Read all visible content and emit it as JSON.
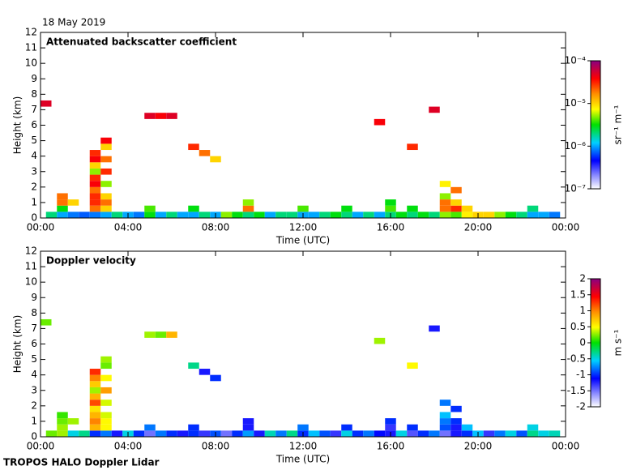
{
  "date": "18 May 2019",
  "footer": "TROPOS HALO Doppler Lidar",
  "chart_data": [
    {
      "type": "heatmap",
      "title": "Attenuated backscatter coefficient",
      "xlabel": "Time (UTC)",
      "ylabel": "Height (km)",
      "xlim": [
        0,
        24
      ],
      "xticks": [
        {
          "value": 0,
          "label": "00:00"
        },
        {
          "value": 4,
          "label": "04:00"
        },
        {
          "value": 8,
          "label": "08:00"
        },
        {
          "value": 12,
          "label": "12:00"
        },
        {
          "value": 16,
          "label": "16:00"
        },
        {
          "value": 20,
          "label": "20:00"
        },
        {
          "value": 24,
          "label": "00:00"
        }
      ],
      "ylim": [
        0,
        12
      ],
      "yticks": [
        0,
        1,
        2,
        3,
        4,
        5,
        6,
        7,
        8,
        9,
        10,
        11,
        12
      ],
      "colorbar_label": "sr⁻¹ m⁻¹",
      "clog": true,
      "clim": [
        1e-07,
        0.0001
      ],
      "cticks": [
        {
          "value": 1e-07,
          "label": "10⁻⁷"
        },
        {
          "value": 1e-06,
          "label": "10⁻⁶"
        },
        {
          "value": 1e-05,
          "label": "10⁻⁵"
        },
        {
          "value": 0.0001,
          "label": "10⁻⁴"
        }
      ],
      "x": [
        0.5,
        1.0,
        1.5,
        2.0,
        2.5,
        3.0,
        3.5,
        4.0,
        4.5,
        5.0,
        5.5,
        6.0,
        6.5,
        7.0,
        7.5,
        8.0,
        8.5,
        9.0,
        9.5,
        10.0,
        10.5,
        11.0,
        11.5,
        12.0,
        12.5,
        13.0,
        13.5,
        14.0,
        14.5,
        15.0,
        15.5,
        16.0,
        16.5,
        17.0,
        17.5,
        18.0,
        18.5,
        19.0,
        19.5,
        20.0,
        20.5,
        21.0,
        21.5,
        22.0,
        22.5,
        23.0,
        23.5,
        1.0,
        2.5,
        3.0,
        5.0,
        7.0,
        9.5,
        12.0,
        14.0,
        16.0,
        17.0,
        18.5,
        19.0,
        19.5,
        22.5,
        1.0,
        1.5,
        2.5,
        3.0,
        9.5,
        16.0,
        18.5,
        19.0,
        1.0,
        2.5,
        3.0,
        18.5,
        2.5,
        2.5,
        2.5,
        2.5,
        2.5,
        2.5,
        2.5,
        3.0,
        3.0,
        3.0,
        3.0,
        3.0,
        7.0,
        7.5,
        8.0,
        5.0,
        5.5,
        6.0,
        0.25,
        15.5,
        17.0,
        18.0,
        18.5,
        19.0
      ],
      "y": [
        0.2,
        0.2,
        0.2,
        0.2,
        0.2,
        0.2,
        0.2,
        0.2,
        0.2,
        0.2,
        0.2,
        0.2,
        0.2,
        0.2,
        0.2,
        0.2,
        0.2,
        0.2,
        0.2,
        0.2,
        0.2,
        0.2,
        0.2,
        0.2,
        0.2,
        0.2,
        0.2,
        0.2,
        0.2,
        0.2,
        0.2,
        0.2,
        0.2,
        0.2,
        0.2,
        0.2,
        0.2,
        0.2,
        0.2,
        0.2,
        0.2,
        0.2,
        0.2,
        0.2,
        0.2,
        0.2,
        0.2,
        0.6,
        0.6,
        0.6,
        0.6,
        0.6,
        0.6,
        0.6,
        0.6,
        0.6,
        0.6,
        0.6,
        0.6,
        0.6,
        0.6,
        1.0,
        1.0,
        1.0,
        1.0,
        1.0,
        1.0,
        1.0,
        1.0,
        1.4,
        1.4,
        1.4,
        1.4,
        1.8,
        2.2,
        2.6,
        3.0,
        3.4,
        3.8,
        4.2,
        2.2,
        3.0,
        3.8,
        4.6,
        5.0,
        4.6,
        4.2,
        3.8,
        6.6,
        6.6,
        6.6,
        7.4,
        6.2,
        4.6,
        7.0,
        2.2,
        1.8
      ],
      "values": [
        2e-06,
        1e-06,
        8e-07,
        7e-07,
        8e-07,
        1e-06,
        2e-06,
        1e-06,
        8e-07,
        3e-06,
        1e-06,
        2e-06,
        1e-06,
        1e-06,
        2e-06,
        1e-06,
        5e-06,
        3e-06,
        2e-06,
        3e-06,
        1e-06,
        2e-06,
        2e-06,
        1e-06,
        1e-06,
        2e-06,
        3e-06,
        2e-06,
        1e-06,
        2e-06,
        1e-06,
        2e-06,
        3e-06,
        2e-06,
        3e-06,
        2e-06,
        5e-06,
        4e-06,
        8e-06,
        1e-05,
        1e-05,
        5e-06,
        3e-06,
        2e-06,
        1e-06,
        1e-06,
        8e-07,
        3e-06,
        2e-05,
        1e-05,
        4e-06,
        3e-06,
        2e-05,
        4e-06,
        3e-06,
        4e-06,
        3e-06,
        2e-05,
        3e-05,
        1e-05,
        2e-06,
        2e-05,
        1e-05,
        3e-05,
        2e-05,
        5e-06,
        3e-06,
        2e-05,
        1e-05,
        2e-05,
        3e-05,
        1e-05,
        5e-06,
        2e-05,
        4e-05,
        3e-05,
        5e-06,
        1e-05,
        4e-05,
        3e-05,
        5e-06,
        3e-05,
        2e-05,
        1e-05,
        4e-05,
        3e-05,
        2e-05,
        1e-05,
        5e-05,
        4e-05,
        5e-05,
        5e-05,
        4e-05,
        3e-05,
        5e-05,
        8e-06,
        2e-05
      ]
    },
    {
      "type": "heatmap",
      "title": "Doppler velocity",
      "xlabel": "Time (UTC)",
      "ylabel": "Height (km)",
      "xlim": [
        0,
        24
      ],
      "xticks": [
        {
          "value": 0,
          "label": "00:00"
        },
        {
          "value": 4,
          "label": "04:00"
        },
        {
          "value": 8,
          "label": "08:00"
        },
        {
          "value": 12,
          "label": "12:00"
        },
        {
          "value": 16,
          "label": "16:00"
        },
        {
          "value": 20,
          "label": "20:00"
        },
        {
          "value": 24,
          "label": "00:00"
        }
      ],
      "ylim": [
        0,
        12
      ],
      "yticks": [
        0,
        1,
        2,
        3,
        4,
        5,
        6,
        7,
        8,
        9,
        10,
        11,
        12
      ],
      "colorbar_label": "m s⁻¹",
      "clog": false,
      "clim": [
        -2,
        2
      ],
      "cticks": [
        -2,
        -1.5,
        -1,
        -0.5,
        0,
        0.5,
        1,
        1.5,
        2
      ],
      "x": [
        0.5,
        1.0,
        1.5,
        2.0,
        2.5,
        3.0,
        3.5,
        4.0,
        4.5,
        5.0,
        5.5,
        6.0,
        6.5,
        7.0,
        7.5,
        8.0,
        8.5,
        9.0,
        9.5,
        10.0,
        10.5,
        11.0,
        11.5,
        12.0,
        12.5,
        13.0,
        13.5,
        14.0,
        14.5,
        15.0,
        15.5,
        16.0,
        16.5,
        17.0,
        17.5,
        18.0,
        18.5,
        19.0,
        19.5,
        20.0,
        20.5,
        21.0,
        21.5,
        22.0,
        22.5,
        23.0,
        23.5,
        1.0,
        2.5,
        3.0,
        5.0,
        7.0,
        9.5,
        12.0,
        14.0,
        16.0,
        17.0,
        18.5,
        19.0,
        19.5,
        22.5,
        1.0,
        1.5,
        2.5,
        3.0,
        9.5,
        16.0,
        18.5,
        19.0,
        1.0,
        2.5,
        3.0,
        18.5,
        2.5,
        2.5,
        2.5,
        2.5,
        2.5,
        2.5,
        2.5,
        3.0,
        3.0,
        3.0,
        3.0,
        3.0,
        7.0,
        7.5,
        8.0,
        5.0,
        5.5,
        6.0,
        0.25,
        15.5,
        17.0,
        18.0,
        18.5,
        19.0
      ],
      "y": [
        0.2,
        0.2,
        0.2,
        0.2,
        0.2,
        0.2,
        0.2,
        0.2,
        0.2,
        0.2,
        0.2,
        0.2,
        0.2,
        0.2,
        0.2,
        0.2,
        0.2,
        0.2,
        0.2,
        0.2,
        0.2,
        0.2,
        0.2,
        0.2,
        0.2,
        0.2,
        0.2,
        0.2,
        0.2,
        0.2,
        0.2,
        0.2,
        0.2,
        0.2,
        0.2,
        0.2,
        0.2,
        0.2,
        0.2,
        0.2,
        0.2,
        0.2,
        0.2,
        0.2,
        0.2,
        0.2,
        0.2,
        0.6,
        0.6,
        0.6,
        0.6,
        0.6,
        0.6,
        0.6,
        0.6,
        0.6,
        0.6,
        0.6,
        0.6,
        0.6,
        0.6,
        1.0,
        1.0,
        1.0,
        1.0,
        1.0,
        1.0,
        1.0,
        1.0,
        1.4,
        1.4,
        1.4,
        1.4,
        1.8,
        2.2,
        2.6,
        3.0,
        3.4,
        3.8,
        4.2,
        2.2,
        3.0,
        3.8,
        4.6,
        5.0,
        4.6,
        4.2,
        3.8,
        6.6,
        6.6,
        6.6,
        7.4,
        6.2,
        4.6,
        7.0,
        2.2,
        1.8
      ],
      "values": [
        0.2,
        0.3,
        -0.5,
        -0.3,
        -1.0,
        -0.8,
        -1.2,
        -0.5,
        -1.0,
        -1.5,
        -0.8,
        -1.0,
        -1.2,
        -1.0,
        -1.3,
        -0.9,
        -1.5,
        -1.0,
        -0.7,
        -1.2,
        -0.4,
        -0.8,
        -0.3,
        -1.0,
        -0.6,
        -0.9,
        -1.3,
        -0.5,
        -1.0,
        -0.8,
        -1.1,
        -1.2,
        -0.5,
        -1.4,
        -1.0,
        -0.8,
        -1.5,
        -1.2,
        -1.0,
        -0.6,
        -1.3,
        -0.8,
        -0.5,
        -0.9,
        -0.3,
        -0.5,
        -0.4,
        0.3,
        0.8,
        0.5,
        -0.8,
        -1.0,
        -1.2,
        -0.8,
        -1.0,
        -1.3,
        -1.0,
        -0.9,
        -1.2,
        -0.6,
        -0.5,
        0.2,
        0.3,
        1.0,
        0.5,
        -1.2,
        -1.0,
        -0.8,
        -1.0,
        0.1,
        0.8,
        0.4,
        -0.6,
        0.6,
        1.2,
        0.8,
        0.3,
        0.7,
        1.0,
        1.3,
        0.4,
        0.9,
        0.5,
        0.2,
        0.3,
        -0.3,
        -1.2,
        -1.0,
        0.3,
        0.2,
        0.8,
        0.2,
        0.3,
        0.5,
        -1.2,
        -0.8,
        -1.0
      ]
    }
  ]
}
